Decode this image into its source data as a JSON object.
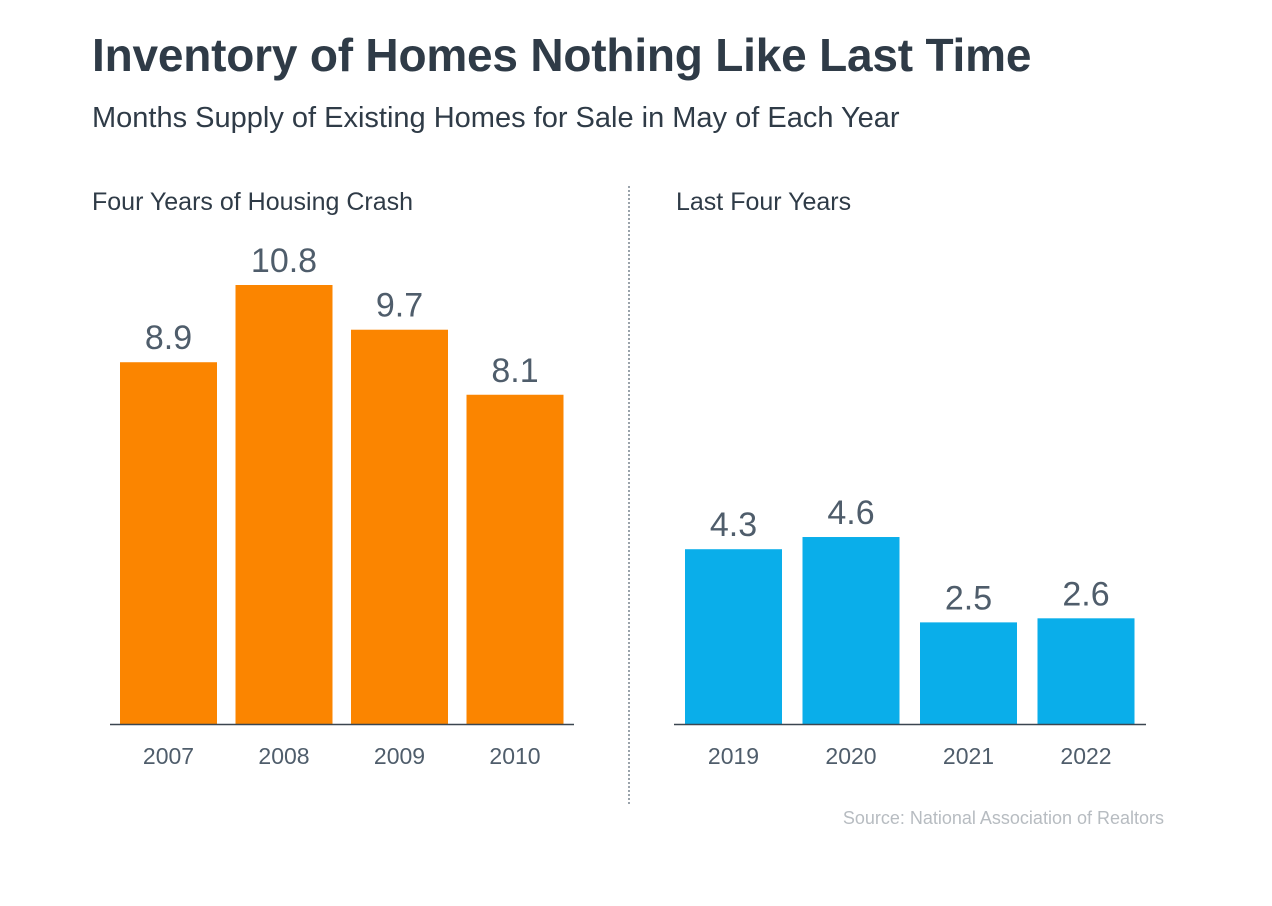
{
  "title": "Inventory of Homes Nothing Like Last Time",
  "subtitle": "Months Supply of Existing Homes for Sale in May of Each Year",
  "source": "Source: National Association of Realtors",
  "colors": {
    "crash": "#fb8500",
    "recent": "#0aaeea",
    "value_label": "#4f5d6b",
    "axis_label": "#4f5d6b",
    "axis_line": "#3b4650"
  },
  "chart_data": [
    {
      "type": "bar",
      "title": "Four Years of Housing Crash",
      "categories": [
        "2007",
        "2008",
        "2009",
        "2010"
      ],
      "values": [
        8.9,
        10.8,
        9.7,
        8.1
      ],
      "data_labels": [
        "8.9",
        "10.8",
        "9.7",
        "8.1"
      ],
      "color": "#fb8500",
      "ylim": [
        0,
        10.8
      ],
      "grid": false
    },
    {
      "type": "bar",
      "title": "Last Four Years",
      "categories": [
        "2019",
        "2020",
        "2021",
        "2022"
      ],
      "values": [
        4.3,
        4.6,
        2.5,
        2.6
      ],
      "data_labels": [
        "4.3",
        "4.6",
        "2.5",
        "2.6"
      ],
      "color": "#0aaeea",
      "ylim": [
        0,
        10.8
      ],
      "grid": false
    }
  ]
}
